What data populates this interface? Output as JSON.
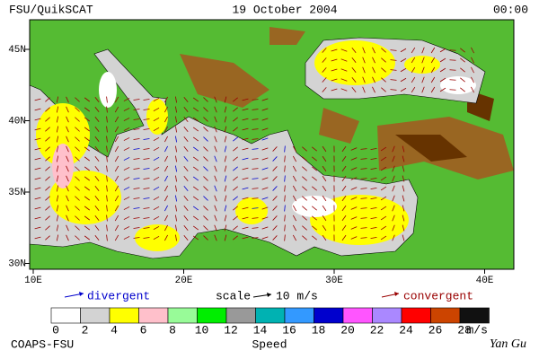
{
  "header": {
    "source": "FSU/QuikSCAT",
    "date": "19 October 2004",
    "time": "00:00"
  },
  "map": {
    "lon_labels": [
      "10E",
      "20E",
      "30E",
      "40E"
    ],
    "lat_labels": [
      "45N",
      "40N",
      "35N",
      "30N"
    ]
  },
  "legend": {
    "divergent": "divergent",
    "scale": "scale",
    "scale_value": "10 m/s",
    "convergent": "convergent"
  },
  "colorbar": {
    "colors": [
      "#ffffff",
      "#d3d3d3",
      "#ffff00",
      "#ffc0cb",
      "#98fb98",
      "#00ee00",
      "#999999",
      "#00b2b2",
      "#3399ff",
      "#0000cd",
      "#ff55ff",
      "#aa88ff",
      "#ff0000",
      "#cc4400",
      "#111111"
    ],
    "labels": [
      0,
      2,
      4,
      6,
      8,
      10,
      12,
      14,
      16,
      18,
      20,
      22,
      24,
      26,
      28
    ],
    "unit": "m/s",
    "title": "Speed"
  },
  "footer": {
    "left": "COAPS-FSU",
    "right": "Yan Gu"
  }
}
